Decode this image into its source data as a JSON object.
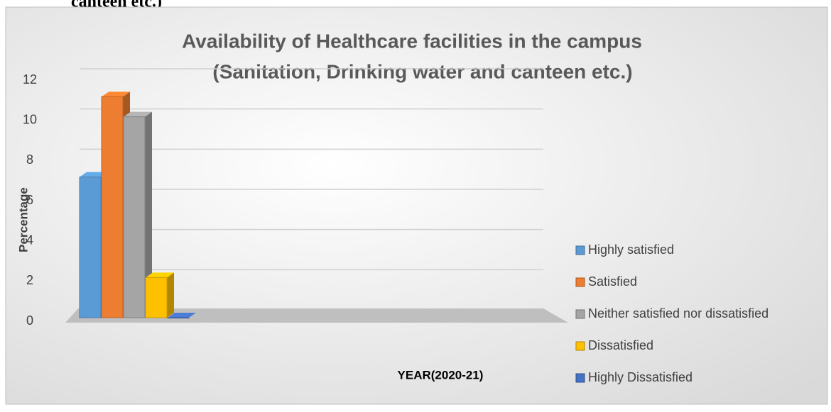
{
  "page_fragment": "canteen etc.)",
  "chart_data": {
    "type": "bar3d",
    "title": [
      "Availability of Healthcare facilities in the campus",
      "(Sanitation, Drinking water and canteen etc.)"
    ],
    "y_label": "Percentage",
    "x_label": "YEAR(2020-21)",
    "ylim": [
      0,
      12
    ],
    "yticks": [
      0,
      2,
      4,
      6,
      8,
      10,
      12
    ],
    "grid": true,
    "legend": "right",
    "series": [
      {
        "name": "Highly satisfied",
        "color": "#5b9bd5",
        "values": [
          7
        ]
      },
      {
        "name": "Satisfied",
        "color": "#ed7d31",
        "values": [
          11
        ]
      },
      {
        "name": "Neither satisfied nor dissatisfied",
        "color": "#a5a5a5",
        "values": [
          10
        ]
      },
      {
        "name": "Dissatisfied",
        "color": "#ffc000",
        "values": [
          2
        ]
      },
      {
        "name": "Highly Dissatisfied",
        "color": "#4472c4",
        "values": [
          0
        ]
      }
    ]
  }
}
